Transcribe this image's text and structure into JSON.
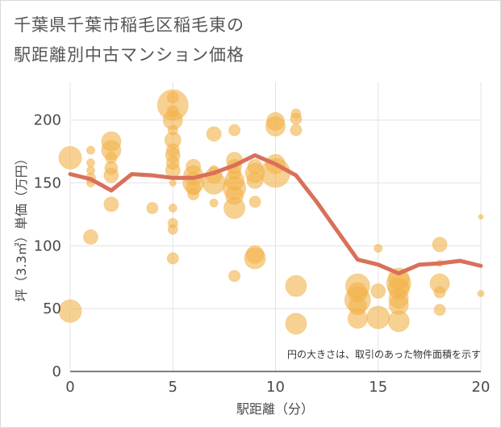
{
  "title_lines": [
    "千葉県千葉市稲毛区稲毛東の",
    "駅距離別中古マンション価格"
  ],
  "note": "円の大きさは、取引のあった物件面積を示す",
  "colors": {
    "bubble": "#f2b24a",
    "line": "#d9705a",
    "grid": "#e3e3e3"
  },
  "chart_data": {
    "type": "scatter",
    "xlabel": "駅距離（分）",
    "ylabel": "坪（3.3㎡）単価（万円）",
    "xlim": [
      0,
      20
    ],
    "ylim": [
      0,
      230
    ],
    "xticks": [
      0,
      5,
      10,
      15,
      20
    ],
    "yticks": [
      0,
      50,
      100,
      150,
      200
    ],
    "grid": true,
    "bubbles": [
      {
        "x": 0,
        "y": 170,
        "s": 14
      },
      {
        "x": 0,
        "y": 48,
        "s": 14
      },
      {
        "x": 1,
        "y": 107,
        "s": 9
      },
      {
        "x": 1,
        "y": 176,
        "s": 5
      },
      {
        "x": 1,
        "y": 166,
        "s": 5
      },
      {
        "x": 1,
        "y": 160,
        "s": 5
      },
      {
        "x": 1,
        "y": 154,
        "s": 6
      },
      {
        "x": 1,
        "y": 150,
        "s": 5
      },
      {
        "x": 2,
        "y": 183,
        "s": 12
      },
      {
        "x": 2,
        "y": 176,
        "s": 12
      },
      {
        "x": 2,
        "y": 170,
        "s": 7
      },
      {
        "x": 2,
        "y": 162,
        "s": 8
      },
      {
        "x": 2,
        "y": 156,
        "s": 9
      },
      {
        "x": 2,
        "y": 133,
        "s": 9
      },
      {
        "x": 4,
        "y": 130,
        "s": 7
      },
      {
        "x": 5,
        "y": 212,
        "s": 19
      },
      {
        "x": 5,
        "y": 218,
        "s": 7
      },
      {
        "x": 5,
        "y": 207,
        "s": 7
      },
      {
        "x": 5,
        "y": 200,
        "s": 12
      },
      {
        "x": 5,
        "y": 192,
        "s": 6
      },
      {
        "x": 5,
        "y": 184,
        "s": 10
      },
      {
        "x": 5,
        "y": 176,
        "s": 8
      },
      {
        "x": 5,
        "y": 172,
        "s": 9
      },
      {
        "x": 5,
        "y": 166,
        "s": 8
      },
      {
        "x": 5,
        "y": 160,
        "s": 9
      },
      {
        "x": 5,
        "y": 150,
        "s": 4
      },
      {
        "x": 5,
        "y": 130,
        "s": 5
      },
      {
        "x": 5,
        "y": 118,
        "s": 6
      },
      {
        "x": 5,
        "y": 113,
        "s": 6
      },
      {
        "x": 5,
        "y": 90,
        "s": 7
      },
      {
        "x": 6,
        "y": 163,
        "s": 9
      },
      {
        "x": 6,
        "y": 156,
        "s": 12
      },
      {
        "x": 6,
        "y": 150,
        "s": 13
      },
      {
        "x": 6,
        "y": 146,
        "s": 9
      },
      {
        "x": 6,
        "y": 141,
        "s": 7
      },
      {
        "x": 7,
        "y": 189,
        "s": 9
      },
      {
        "x": 7,
        "y": 160,
        "s": 6
      },
      {
        "x": 7,
        "y": 156,
        "s": 10
      },
      {
        "x": 7,
        "y": 150,
        "s": 14
      },
      {
        "x": 7,
        "y": 134,
        "s": 5
      },
      {
        "x": 8,
        "y": 192,
        "s": 7
      },
      {
        "x": 8,
        "y": 168,
        "s": 10
      },
      {
        "x": 8,
        "y": 163,
        "s": 9
      },
      {
        "x": 8,
        "y": 158,
        "s": 8
      },
      {
        "x": 8,
        "y": 152,
        "s": 12
      },
      {
        "x": 8,
        "y": 146,
        "s": 14
      },
      {
        "x": 8,
        "y": 140,
        "s": 11
      },
      {
        "x": 8,
        "y": 130,
        "s": 13
      },
      {
        "x": 8,
        "y": 76,
        "s": 7
      },
      {
        "x": 9,
        "y": 163,
        "s": 9
      },
      {
        "x": 9,
        "y": 158,
        "s": 12
      },
      {
        "x": 9,
        "y": 152,
        "s": 10
      },
      {
        "x": 9,
        "y": 135,
        "s": 7
      },
      {
        "x": 9,
        "y": 93,
        "s": 11
      },
      {
        "x": 9,
        "y": 90,
        "s": 13
      },
      {
        "x": 10,
        "y": 199,
        "s": 11
      },
      {
        "x": 10,
        "y": 195,
        "s": 12
      },
      {
        "x": 10,
        "y": 165,
        "s": 12
      },
      {
        "x": 10,
        "y": 158,
        "s": 18
      },
      {
        "x": 11,
        "y": 205,
        "s": 6
      },
      {
        "x": 11,
        "y": 201,
        "s": 7
      },
      {
        "x": 11,
        "y": 192,
        "s": 7
      },
      {
        "x": 11,
        "y": 68,
        "s": 13
      },
      {
        "x": 11,
        "y": 38,
        "s": 13
      },
      {
        "x": 14,
        "y": 68,
        "s": 15
      },
      {
        "x": 14,
        "y": 63,
        "s": 12
      },
      {
        "x": 14,
        "y": 57,
        "s": 16
      },
      {
        "x": 14,
        "y": 52,
        "s": 11
      },
      {
        "x": 14,
        "y": 42,
        "s": 12
      },
      {
        "x": 15,
        "y": 98,
        "s": 5
      },
      {
        "x": 15,
        "y": 64,
        "s": 9
      },
      {
        "x": 15,
        "y": 43,
        "s": 14
      },
      {
        "x": 16,
        "y": 74,
        "s": 13
      },
      {
        "x": 16,
        "y": 70,
        "s": 15
      },
      {
        "x": 16,
        "y": 66,
        "s": 13
      },
      {
        "x": 16,
        "y": 58,
        "s": 12
      },
      {
        "x": 16,
        "y": 53,
        "s": 12
      },
      {
        "x": 16,
        "y": 40,
        "s": 13
      },
      {
        "x": 18,
        "y": 101,
        "s": 9
      },
      {
        "x": 18,
        "y": 86,
        "s": 4
      },
      {
        "x": 18,
        "y": 70,
        "s": 12
      },
      {
        "x": 18,
        "y": 63,
        "s": 7
      },
      {
        "x": 18,
        "y": 49,
        "s": 7
      },
      {
        "x": 20,
        "y": 123,
        "s": 3
      },
      {
        "x": 20,
        "y": 62,
        "s": 4
      }
    ],
    "trend": [
      {
        "x": 0,
        "y": 157
      },
      {
        "x": 1,
        "y": 153
      },
      {
        "x": 2,
        "y": 144
      },
      {
        "x": 3,
        "y": 157
      },
      {
        "x": 4,
        "y": 156
      },
      {
        "x": 5,
        "y": 154
      },
      {
        "x": 6,
        "y": 154
      },
      {
        "x": 7,
        "y": 158
      },
      {
        "x": 8,
        "y": 164
      },
      {
        "x": 9,
        "y": 172
      },
      {
        "x": 10,
        "y": 165
      },
      {
        "x": 11,
        "y": 156
      },
      {
        "x": 12,
        "y": 135
      },
      {
        "x": 13,
        "y": 112
      },
      {
        "x": 14,
        "y": 89
      },
      {
        "x": 15,
        "y": 85
      },
      {
        "x": 16,
        "y": 78
      },
      {
        "x": 17,
        "y": 85
      },
      {
        "x": 18,
        "y": 86
      },
      {
        "x": 19,
        "y": 88
      },
      {
        "x": 20,
        "y": 84
      }
    ]
  }
}
